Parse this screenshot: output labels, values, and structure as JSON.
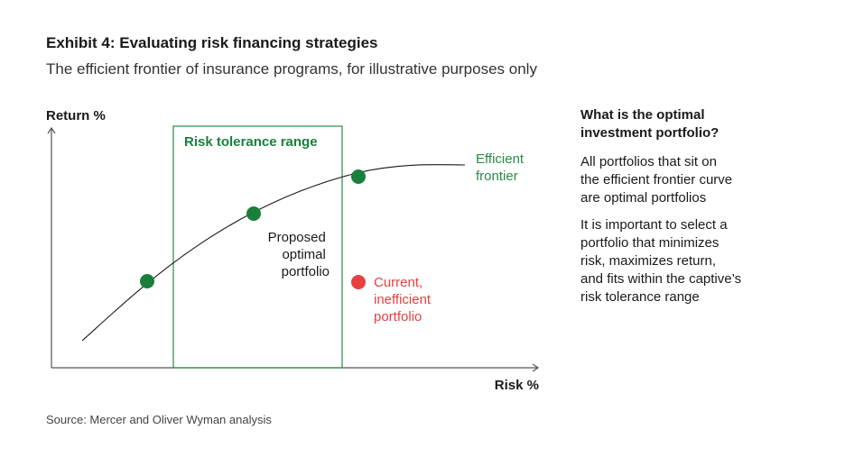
{
  "header": {
    "title": "Exhibit 4: Evaluating risk financing strategies",
    "subtitle": "The efficient frontier of insurance programs, for illustrative purposes only"
  },
  "diagram": {
    "y_axis_label": "Return %",
    "x_axis_label": "Risk %",
    "range_box_label": "Risk tolerance range",
    "curve_label_lines": [
      "Efficient",
      "frontier"
    ],
    "proposed_label_lines": [
      "Proposed",
      "optimal",
      "portfolio"
    ],
    "current_label_lines": [
      "Current,",
      "inefficient",
      "portfolio"
    ],
    "colors": {
      "green": "#1a7f3c",
      "green_text": "#2a8a45",
      "red": "#e84040",
      "axis": "#555555",
      "curve": "#1a1a1a"
    }
  },
  "side_panel": {
    "heading_lines": [
      "What is the optimal",
      "investment portfolio?"
    ],
    "paragraph_1_lines": [
      "All portfolios that sit on",
      "the efficient frontier curve",
      "are optimal portfolios"
    ],
    "paragraph_2_lines": [
      "It is important to select a",
      "portfolio that minimizes",
      "risk, maximizes return,",
      "and fits within the captive’s",
      "risk tolerance range"
    ]
  },
  "footer": {
    "source": "Source: Mercer and Oliver Wyman analysis"
  }
}
